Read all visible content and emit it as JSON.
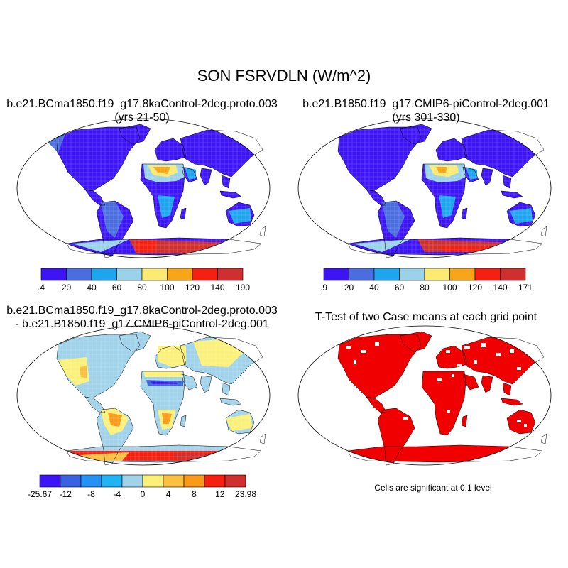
{
  "title": "SON FSRVDLN (W/m^2)",
  "colors": {
    "abs_scale": [
      "#3c14f5",
      "#4a6ee0",
      "#1ea5f0",
      "#9ad2ea",
      "#fbeb72",
      "#f9a51a",
      "#f52010",
      "#d02f2f"
    ],
    "diff_scale": [
      "#3c14f5",
      "#3a62e0",
      "#2591f2",
      "#22b4f2",
      "#a0d3ea",
      "#fbf07a",
      "#fcc040",
      "#f99a18",
      "#f52010",
      "#d02f2f"
    ],
    "ocean": "#ffffff",
    "significant": "#f00000",
    "outline": "#000000"
  },
  "panels": [
    {
      "title_line1": "b.e21.BCma1850.f19_g17.8kaControl-2deg.proto.003",
      "title_line2": "(yrs 21-50)",
      "colorbar_labels": [
        ".4",
        "20",
        "40",
        "60",
        "80",
        "100",
        "120",
        "140",
        "190"
      ]
    },
    {
      "title_line1": "b.e21.B1850.f19_g17.CMIP6-piControl-2deg.001",
      "title_line2": "(yrs 301-330)",
      "colorbar_labels": [
        ".9",
        "20",
        "40",
        "60",
        "80",
        "100",
        "120",
        "140",
        "171"
      ]
    },
    {
      "title_line1": "b.e21.BCma1850.f19_g17.8kaControl-2deg.proto.003",
      "title_line2": "- b.e21.B1850.f19_g17.CMIP6-piControl-2deg.001",
      "colorbar_labels": [
        "-25.67",
        "-12",
        "-8",
        "-4",
        "0",
        "4",
        "8",
        "12",
        "23.98"
      ]
    },
    {
      "title_line1": "T-Test of two Case means at each grid point",
      "note": "Cells are significant at 0.1 level"
    }
  ]
}
